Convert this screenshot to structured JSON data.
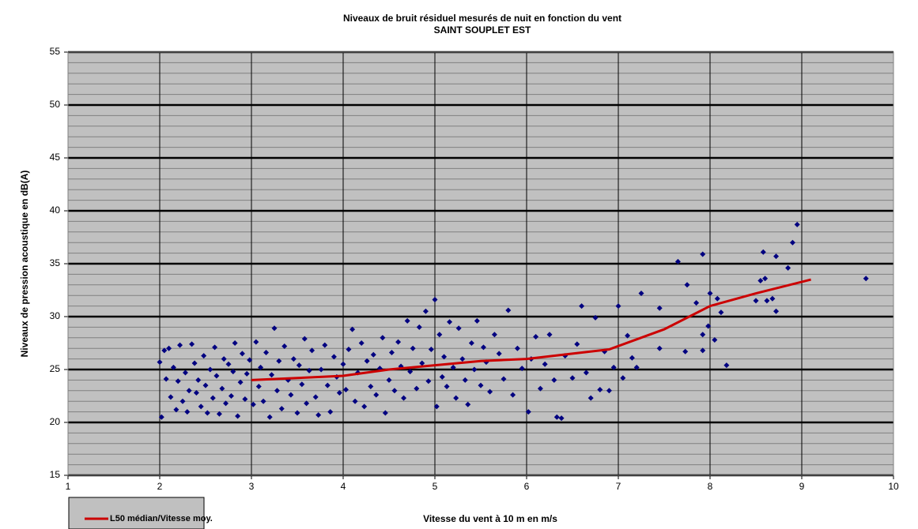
{
  "chart_data": {
    "type": "scatter",
    "title": "Niveaux de bruit  résiduel mesurés de nuit en fonction du vent",
    "subtitle": "SAINT SOUPLET EST",
    "x_label": "Vitesse du vent  à 10 m en m/s",
    "y_label": "Niveaux de pression acoustique en dB(A)",
    "xlim": [
      1,
      10
    ],
    "xticks": [
      1,
      2,
      3,
      4,
      5,
      6,
      7,
      8,
      9,
      10
    ],
    "ylim": [
      15,
      55
    ],
    "yticks": [
      15,
      20,
      25,
      30,
      35,
      40,
      45,
      50,
      55
    ],
    "minor_ystep": 1,
    "grid": true,
    "background": "#c0c0c0",
    "legend": "bottom-left",
    "series": [
      {
        "type": "scatter",
        "color": "#000080",
        "x": [
          2.0,
          2.02,
          2.05,
          2.07,
          2.1,
          2.12,
          2.15,
          2.18,
          2.2,
          2.22,
          2.25,
          2.28,
          2.3,
          2.32,
          2.35,
          2.38,
          2.4,
          2.42,
          2.45,
          2.48,
          2.5,
          2.52,
          2.55,
          2.58,
          2.6,
          2.62,
          2.65,
          2.68,
          2.7,
          2.72,
          2.75,
          2.78,
          2.8,
          2.82,
          2.85,
          2.88,
          2.9,
          2.93,
          2.95,
          2.98,
          3.02,
          3.05,
          3.08,
          3.1,
          3.13,
          3.16,
          3.2,
          3.22,
          3.25,
          3.28,
          3.3,
          3.33,
          3.36,
          3.4,
          3.43,
          3.46,
          3.5,
          3.52,
          3.55,
          3.58,
          3.6,
          3.63,
          3.66,
          3.7,
          3.73,
          3.76,
          3.8,
          3.83,
          3.86,
          3.9,
          3.93,
          3.96,
          4.0,
          4.03,
          4.06,
          4.1,
          4.13,
          4.16,
          4.2,
          4.23,
          4.26,
          4.3,
          4.33,
          4.36,
          4.4,
          4.43,
          4.46,
          4.5,
          4.53,
          4.56,
          4.6,
          4.63,
          4.66,
          4.7,
          4.73,
          4.76,
          4.8,
          4.83,
          4.86,
          4.9,
          4.93,
          4.96,
          5.0,
          5.02,
          5.05,
          5.08,
          5.1,
          5.13,
          5.16,
          5.2,
          5.23,
          5.26,
          5.3,
          5.33,
          5.36,
          5.4,
          5.43,
          5.46,
          5.5,
          5.53,
          5.56,
          5.6,
          5.65,
          5.7,
          5.75,
          5.8,
          5.85,
          5.9,
          5.95,
          6.02,
          6.05,
          6.1,
          6.15,
          6.2,
          6.25,
          6.3,
          6.33,
          6.38,
          6.42,
          6.5,
          6.55,
          6.6,
          6.65,
          6.7,
          6.75,
          6.8,
          6.85,
          6.9,
          6.95,
          7.0,
          7.05,
          7.1,
          7.15,
          7.2,
          7.25,
          7.45,
          7.45,
          7.65,
          7.73,
          7.75,
          7.85,
          7.92,
          7.92,
          7.92,
          7.98,
          8.0,
          8.05,
          8.08,
          8.12,
          8.18,
          8.5,
          8.55,
          8.58,
          8.6,
          8.62,
          8.68,
          8.72,
          8.72,
          8.85,
          8.9,
          8.95,
          9.7
        ],
        "values": [
          25.7,
          20.5,
          26.8,
          24.1,
          27.0,
          22.4,
          25.2,
          21.2,
          23.9,
          27.3,
          22.0,
          24.7,
          21.0,
          23.0,
          27.4,
          25.6,
          22.8,
          24.0,
          21.5,
          26.3,
          23.5,
          20.9,
          25.0,
          22.3,
          27.1,
          24.4,
          20.8,
          23.2,
          26.0,
          21.8,
          25.5,
          22.5,
          24.8,
          27.5,
          20.6,
          23.8,
          26.5,
          22.2,
          24.6,
          25.9,
          21.7,
          27.6,
          23.4,
          25.2,
          22.0,
          26.6,
          20.5,
          24.5,
          28.9,
          23.0,
          25.8,
          21.3,
          27.2,
          24.0,
          22.6,
          26.0,
          20.9,
          25.4,
          23.6,
          27.9,
          21.8,
          24.9,
          26.8,
          22.4,
          20.7,
          25.0,
          27.3,
          23.5,
          21.0,
          26.2,
          24.3,
          22.8,
          25.5,
          23.1,
          26.9,
          28.8,
          22.0,
          24.7,
          27.5,
          21.5,
          25.8,
          23.4,
          26.4,
          22.6,
          25.1,
          28.0,
          20.9,
          24.0,
          26.6,
          23.0,
          27.6,
          25.3,
          22.3,
          29.6,
          24.8,
          27.0,
          23.2,
          29.0,
          25.6,
          30.5,
          23.9,
          26.9,
          31.6,
          21.5,
          28.3,
          24.3,
          26.2,
          23.4,
          29.5,
          25.2,
          22.3,
          28.9,
          26.0,
          24.0,
          21.7,
          27.5,
          25.0,
          29.6,
          23.5,
          27.1,
          25.7,
          22.9,
          28.3,
          26.5,
          24.1,
          30.6,
          22.6,
          27.0,
          25.1,
          21.0,
          26.0,
          28.1,
          23.2,
          25.5,
          28.3,
          24.0,
          20.5,
          20.4,
          26.3,
          24.2,
          27.4,
          31.0,
          24.7,
          22.3,
          29.9,
          23.1,
          26.7,
          23.0,
          25.2,
          31.0,
          24.2,
          28.2,
          26.1,
          25.2,
          32.2,
          27.0,
          30.8,
          35.2,
          26.7,
          33.0,
          31.3,
          35.9,
          28.3,
          26.8,
          29.1,
          32.2,
          27.8,
          31.7,
          30.4,
          25.4,
          31.5,
          33.4,
          36.1,
          33.6,
          31.5,
          31.7,
          35.7,
          30.5,
          34.6,
          37.0,
          38.7,
          33.6
        ]
      },
      {
        "type": "line",
        "name": "L50 médian/Vitesse moy.",
        "color": "#cc0000",
        "x": [
          3.0,
          3.5,
          4.0,
          4.5,
          5.0,
          5.5,
          6.0,
          6.5,
          6.9,
          7.5,
          8.0,
          8.5,
          9.1
        ],
        "values": [
          24.0,
          24.2,
          24.4,
          25.0,
          25.4,
          25.8,
          26.0,
          26.5,
          26.9,
          28.8,
          31.0,
          32.2,
          33.5
        ]
      }
    ]
  }
}
